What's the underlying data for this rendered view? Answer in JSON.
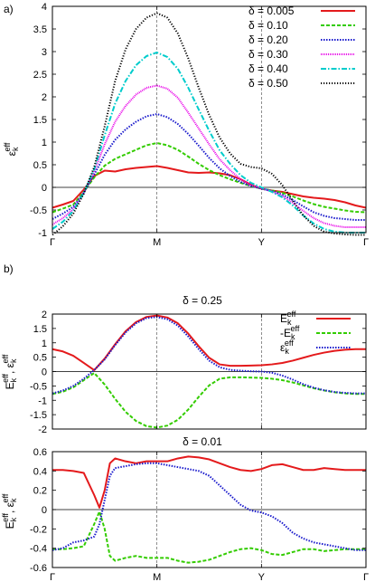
{
  "chart_data": [
    {
      "type": "line",
      "panel_label": "a)",
      "title": "",
      "xlabel": "",
      "ylabel": "ε_k^eff",
      "ylabel_main": "ε",
      "ylabel_sub": "k",
      "ylabel_sup": "eff",
      "ylim": [
        -1.0,
        4.0
      ],
      "yticks": [
        -1,
        -0.5,
        0,
        0.5,
        1,
        1.5,
        2,
        2.5,
        3,
        3.5,
        4
      ],
      "ytick_labels": [
        "-1",
        "-0.5",
        "0",
        "0.5",
        "1",
        "1.5",
        "2",
        "2.5",
        "3",
        "3.5",
        "4"
      ],
      "xlim": [
        0,
        3
      ],
      "xticks": [
        0,
        1,
        2,
        3
      ],
      "xtick_labels": [
        "Γ",
        "M",
        "Y",
        "Γ"
      ],
      "grid": false,
      "legend": "top-right",
      "x": [
        0,
        0.1,
        0.2,
        0.3,
        0.4,
        0.5,
        0.6,
        0.7,
        0.8,
        0.9,
        1.0,
        1.1,
        1.2,
        1.3,
        1.4,
        1.5,
        1.6,
        1.7,
        1.8,
        1.9,
        2.0,
        2.1,
        2.2,
        2.3,
        2.4,
        2.5,
        2.6,
        2.7,
        2.8,
        2.9,
        3.0
      ],
      "series": [
        {
          "name": "δ = 0.005",
          "color": "#e41a1c",
          "dash": "solid",
          "values": [
            -0.45,
            -0.38,
            -0.3,
            -0.05,
            0.25,
            0.37,
            0.35,
            0.4,
            0.43,
            0.45,
            0.47,
            0.43,
            0.38,
            0.33,
            0.32,
            0.33,
            0.31,
            0.27,
            0.18,
            0.06,
            -0.03,
            -0.07,
            -0.1,
            -0.15,
            -0.2,
            -0.23,
            -0.25,
            -0.28,
            -0.33,
            -0.4,
            -0.45
          ]
        },
        {
          "name": "δ = 0.10",
          "color": "#33cc00",
          "dash": "4,2",
          "values": [
            -0.55,
            -0.47,
            -0.38,
            -0.1,
            0.22,
            0.48,
            0.63,
            0.73,
            0.83,
            0.93,
            0.98,
            0.93,
            0.83,
            0.68,
            0.52,
            0.38,
            0.27,
            0.18,
            0.1,
            0.03,
            -0.03,
            -0.07,
            -0.12,
            -0.2,
            -0.29,
            -0.37,
            -0.43,
            -0.47,
            -0.51,
            -0.54,
            -0.55
          ]
        },
        {
          "name": "δ = 0.20",
          "color": "#1a1acc",
          "dash": "1.5,1.5",
          "values": [
            -0.7,
            -0.58,
            -0.43,
            -0.12,
            0.28,
            0.72,
            1.05,
            1.28,
            1.45,
            1.57,
            1.62,
            1.55,
            1.4,
            1.18,
            0.92,
            0.65,
            0.42,
            0.25,
            0.12,
            0.03,
            -0.03,
            -0.08,
            -0.16,
            -0.28,
            -0.42,
            -0.55,
            -0.63,
            -0.68,
            -0.7,
            -0.72,
            -0.72
          ]
        },
        {
          "name": "δ = 0.30",
          "color": "#e800e8",
          "dash": "1,1",
          "values": [
            -0.82,
            -0.68,
            -0.48,
            -0.12,
            0.35,
            0.95,
            1.45,
            1.8,
            2.05,
            2.2,
            2.25,
            2.18,
            1.98,
            1.65,
            1.3,
            0.95,
            0.62,
            0.38,
            0.18,
            0.05,
            -0.02,
            -0.09,
            -0.19,
            -0.34,
            -0.52,
            -0.68,
            -0.79,
            -0.85,
            -0.88,
            -0.88,
            -0.88
          ]
        },
        {
          "name": "δ = 0.40",
          "color": "#00cccc",
          "dash": "6,2,1.5,2",
          "values": [
            -0.92,
            -0.76,
            -0.52,
            -0.12,
            0.4,
            1.15,
            1.85,
            2.35,
            2.7,
            2.9,
            2.98,
            2.88,
            2.62,
            2.2,
            1.72,
            1.25,
            0.82,
            0.52,
            0.27,
            0.1,
            0.0,
            -0.1,
            -0.22,
            -0.4,
            -0.62,
            -0.8,
            -0.92,
            -0.98,
            -1.0,
            -1.0,
            -1.0
          ]
        },
        {
          "name": "δ = 0.50",
          "color": "#000000",
          "dash": "1.2,1.8",
          "values": [
            -1.05,
            -0.86,
            -0.58,
            -0.14,
            0.45,
            1.35,
            2.35,
            3.05,
            3.5,
            3.75,
            3.85,
            3.75,
            3.4,
            2.85,
            2.2,
            1.6,
            1.1,
            0.75,
            0.52,
            0.45,
            0.42,
            0.3,
            0.05,
            -0.3,
            -0.62,
            -0.85,
            -0.98,
            -1.02,
            -1.04,
            -1.05,
            -1.05
          ]
        }
      ]
    },
    {
      "type": "line",
      "panel_label": "b)",
      "title": "δ = 0.25",
      "xlabel": "",
      "ylabel": "E_k^eff, ε_k^eff",
      "ylim": [
        -2.0,
        2.0
      ],
      "yticks": [
        -2,
        -1.5,
        -1,
        -0.5,
        0,
        0.5,
        1,
        1.5,
        2
      ],
      "ytick_labels": [
        "-2",
        "-1.5",
        "-1",
        "-0.5",
        "0",
        "0.5",
        "1",
        "1.5",
        "2"
      ],
      "xlim": [
        0,
        3
      ],
      "grid": false,
      "legend": "top-right",
      "x": [
        0,
        0.1,
        0.2,
        0.3,
        0.4,
        0.5,
        0.6,
        0.7,
        0.8,
        0.9,
        1.0,
        1.1,
        1.2,
        1.3,
        1.4,
        1.5,
        1.6,
        1.7,
        1.8,
        1.9,
        2.0,
        2.1,
        2.2,
        2.3,
        2.4,
        2.5,
        2.6,
        2.7,
        2.8,
        2.9,
        3.0
      ],
      "series": [
        {
          "name": "E",
          "name_sup": "eff",
          "name_sub": "k",
          "color": "#e41a1c",
          "dash": "solid",
          "values": [
            0.78,
            0.7,
            0.55,
            0.3,
            0.05,
            0.45,
            0.95,
            1.4,
            1.72,
            1.9,
            1.95,
            1.88,
            1.68,
            1.32,
            0.88,
            0.48,
            0.25,
            0.2,
            0.2,
            0.21,
            0.22,
            0.25,
            0.3,
            0.38,
            0.48,
            0.58,
            0.66,
            0.72,
            0.76,
            0.78,
            0.78
          ]
        },
        {
          "name": "-E",
          "name_sup": "eff",
          "name_sub": "k",
          "color": "#33cc00",
          "dash": "4,2",
          "values": [
            -0.78,
            -0.7,
            -0.55,
            -0.3,
            -0.05,
            -0.45,
            -0.95,
            -1.4,
            -1.72,
            -1.9,
            -1.95,
            -1.88,
            -1.68,
            -1.32,
            -0.88,
            -0.48,
            -0.25,
            -0.2,
            -0.2,
            -0.21,
            -0.22,
            -0.25,
            -0.3,
            -0.38,
            -0.48,
            -0.58,
            -0.66,
            -0.72,
            -0.76,
            -0.78,
            -0.78
          ]
        },
        {
          "name": "ε",
          "name_sup": "eff",
          "name_sub": "k",
          "color": "#1a1acc",
          "dash": "1.5,1.5",
          "values": [
            -0.76,
            -0.66,
            -0.5,
            -0.25,
            0.05,
            0.42,
            0.92,
            1.36,
            1.68,
            1.86,
            1.9,
            1.82,
            1.6,
            1.22,
            0.78,
            0.38,
            0.15,
            0.06,
            0.03,
            0.01,
            0.0,
            -0.04,
            -0.14,
            -0.28,
            -0.44,
            -0.56,
            -0.65,
            -0.71,
            -0.74,
            -0.76,
            -0.76
          ]
        }
      ]
    },
    {
      "type": "line",
      "title": "δ = 0.01",
      "xlabel": "",
      "ylabel": "E_k^eff, ε_k^eff",
      "ylim": [
        -0.6,
        0.6
      ],
      "yticks": [
        -0.6,
        -0.4,
        -0.2,
        0,
        0.2,
        0.4,
        0.6
      ],
      "ytick_labels": [
        "-0.6",
        "-0.4",
        "-0.2",
        "0",
        "0.2",
        "0.4",
        "0.6"
      ],
      "xlim": [
        0,
        3
      ],
      "xticks": [
        0,
        1,
        2,
        3
      ],
      "xtick_labels": [
        "Γ",
        "M",
        "Y",
        "Γ"
      ],
      "grid": false,
      "legend": "none",
      "x": [
        0,
        0.1,
        0.2,
        0.3,
        0.4,
        0.45,
        0.5,
        0.55,
        0.6,
        0.7,
        0.8,
        0.9,
        1.0,
        1.1,
        1.2,
        1.3,
        1.4,
        1.5,
        1.6,
        1.7,
        1.8,
        1.9,
        2.0,
        2.1,
        2.2,
        2.3,
        2.4,
        2.5,
        2.6,
        2.7,
        2.8,
        2.9,
        3.0
      ],
      "series": [
        {
          "name": "E",
          "color": "#e41a1c",
          "dash": "solid",
          "values": [
            0.41,
            0.41,
            0.4,
            0.38,
            0.15,
            0.02,
            0.2,
            0.48,
            0.53,
            0.5,
            0.48,
            0.5,
            0.5,
            0.5,
            0.53,
            0.55,
            0.54,
            0.52,
            0.48,
            0.44,
            0.41,
            0.4,
            0.42,
            0.46,
            0.47,
            0.44,
            0.41,
            0.41,
            0.43,
            0.42,
            0.41,
            0.41,
            0.41
          ]
        },
        {
          "name": "-E",
          "color": "#33cc00",
          "dash": "4,2",
          "values": [
            -0.41,
            -0.41,
            -0.4,
            -0.38,
            -0.15,
            -0.02,
            -0.2,
            -0.48,
            -0.53,
            -0.5,
            -0.48,
            -0.5,
            -0.5,
            -0.5,
            -0.53,
            -0.55,
            -0.54,
            -0.52,
            -0.48,
            -0.44,
            -0.41,
            -0.4,
            -0.42,
            -0.46,
            -0.47,
            -0.44,
            -0.41,
            -0.41,
            -0.43,
            -0.42,
            -0.41,
            -0.41,
            -0.41
          ]
        },
        {
          "name": "ε",
          "color": "#1a1acc",
          "dash": "1.5,1.5",
          "values": [
            -0.42,
            -0.4,
            -0.34,
            -0.32,
            -0.28,
            -0.15,
            0.1,
            0.35,
            0.43,
            0.45,
            0.47,
            0.48,
            0.48,
            0.46,
            0.44,
            0.42,
            0.4,
            0.35,
            0.25,
            0.15,
            0.05,
            -0.01,
            -0.03,
            -0.07,
            -0.14,
            -0.24,
            -0.3,
            -0.34,
            -0.36,
            -0.38,
            -0.4,
            -0.42,
            -0.42
          ]
        }
      ]
    }
  ]
}
